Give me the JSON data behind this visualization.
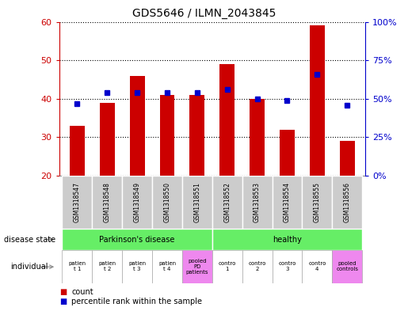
{
  "title": "GDS5646 / ILMN_2043845",
  "gsm_labels": [
    "GSM1318547",
    "GSM1318548",
    "GSM1318549",
    "GSM1318550",
    "GSM1318551",
    "GSM1318552",
    "GSM1318553",
    "GSM1318554",
    "GSM1318555",
    "GSM1318556"
  ],
  "count_values": [
    33,
    39,
    46,
    41,
    41,
    49,
    40,
    32,
    59,
    29
  ],
  "percentile_values": [
    47,
    54,
    54,
    54,
    54,
    56,
    50,
    49,
    66,
    46
  ],
  "ylim_left": [
    20,
    60
  ],
  "ylim_right": [
    0,
    100
  ],
  "yticks_left": [
    20,
    30,
    40,
    50,
    60
  ],
  "yticks_right": [
    0,
    25,
    50,
    75,
    100
  ],
  "ytick_labels_right": [
    "0%",
    "25%",
    "50%",
    "75%",
    "100%"
  ],
  "bar_color": "#cc0000",
  "dot_color": "#0000cc",
  "bar_width": 0.5,
  "disease_state_green": "#66ee66",
  "individual_pink": "#ee88ee",
  "individual_white": "#ffffff",
  "axis_label_color_left": "#cc0000",
  "axis_label_color_right": "#0000cc",
  "legend_count_label": "count",
  "legend_percentile_label": "percentile rank within the sample",
  "bg_color": "#ffffff",
  "gsm_bg_color": "#cccccc",
  "ind_labels": [
    "patien\nt 1",
    "patien\nt 2",
    "patien\nt 3",
    "patien\nt 4",
    "pooled\nPD\npatients",
    "contro\n1",
    "contro\n2",
    "contro\n3",
    "contro\n4",
    "pooled\ncontrols"
  ],
  "ind_colors": [
    "#ffffff",
    "#ffffff",
    "#ffffff",
    "#ffffff",
    "#ee88ee",
    "#ffffff",
    "#ffffff",
    "#ffffff",
    "#ffffff",
    "#ee88ee"
  ]
}
